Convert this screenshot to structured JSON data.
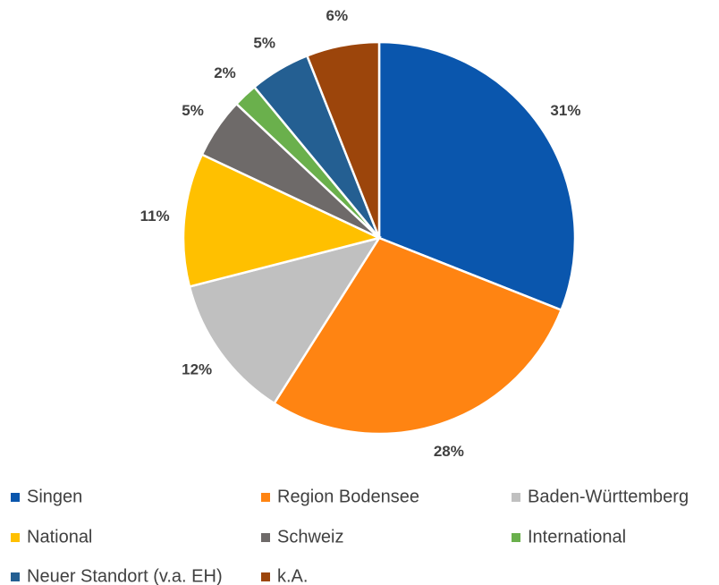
{
  "chart_data": {
    "type": "pie",
    "categories": [
      "Singen",
      "Region Bodensee",
      "Baden-Württemberg",
      "National",
      "Schweiz",
      "International",
      "Neuer Standort (v.a. EH)",
      "k.A."
    ],
    "values": [
      31,
      28,
      12,
      11,
      5,
      2,
      5,
      6
    ],
    "value_labels": [
      "31%",
      "28%",
      "12%",
      "11%",
      "5%",
      "2%",
      "5%",
      "6%"
    ],
    "colors": [
      "#0a56ad",
      "#ff8412",
      "#c0c0c0",
      "#ffc000",
      "#6e6a69",
      "#6ab04c",
      "#245f92",
      "#9c450b"
    ],
    "legend": "bottom"
  }
}
